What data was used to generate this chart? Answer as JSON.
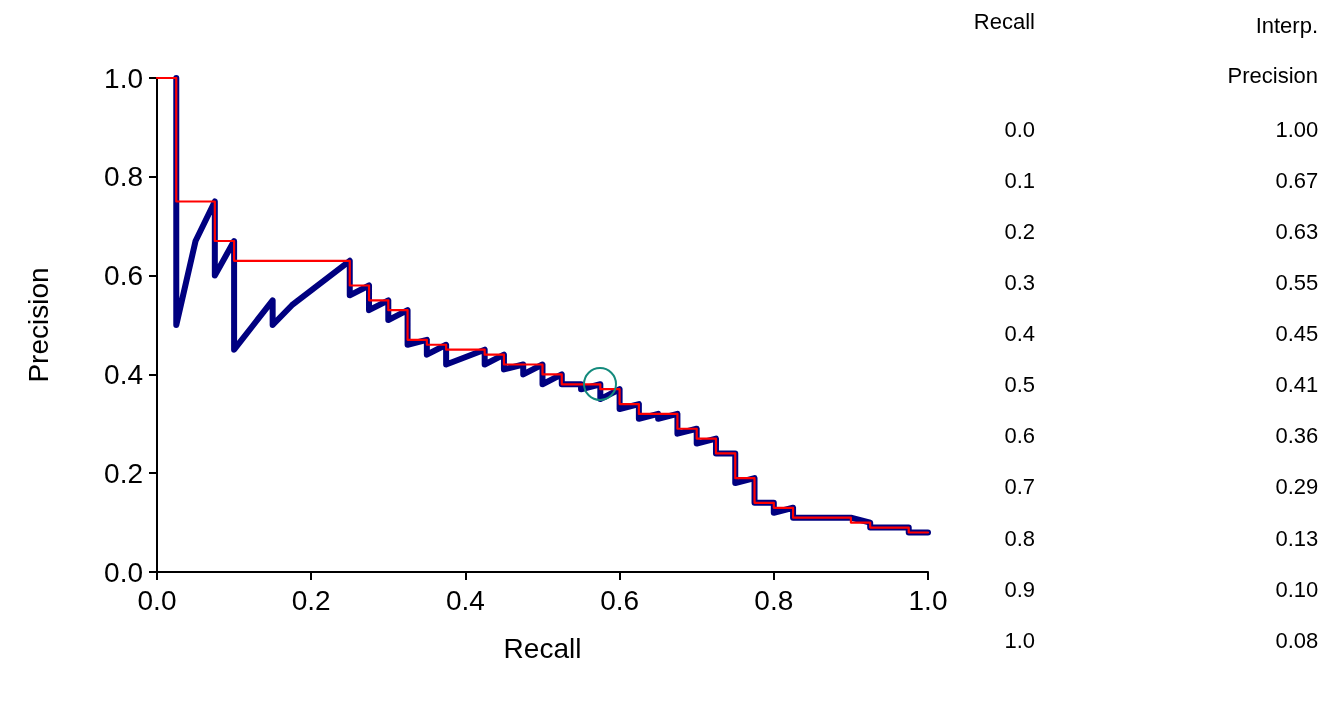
{
  "chart_data": [
    {
      "type": "line",
      "xlabel": "Recall",
      "ylabel": "Precision",
      "xlim": [
        0,
        1
      ],
      "ylim": [
        0,
        1
      ],
      "xticks": [
        {
          "value": 0,
          "label": "0.0"
        },
        0.2,
        0.4,
        0.6,
        0.8,
        {
          "value": 1,
          "label": "1.0"
        }
      ],
      "yticks": [
        {
          "value": 0,
          "label": "0.0"
        },
        0.2,
        0.4,
        0.6,
        0.8,
        {
          "value": 1,
          "label": "1.0"
        }
      ],
      "grid": false,
      "marker": "none",
      "series": [
        {
          "type": "line",
          "color": "#000080",
          "x": [
            0.025,
            0.025,
            0.05,
            0.075,
            0.075,
            0.1,
            0.1,
            0.125,
            0.15,
            0.15,
            0.175,
            0.2,
            0.225,
            0.25,
            0.25,
            0.275,
            0.275,
            0.3,
            0.3,
            0.325,
            0.325,
            0.35,
            0.35,
            0.375,
            0.375,
            0.425,
            0.425,
            0.45,
            0.45,
            0.475,
            0.475,
            0.5,
            0.5,
            0.525,
            0.525,
            0.55,
            0.55,
            0.575,
            0.575,
            0.6,
            0.6,
            0.625,
            0.625,
            0.65,
            0.65,
            0.675,
            0.675,
            0.7,
            0.7,
            0.725,
            0.725,
            0.75,
            0.75,
            0.775,
            0.775,
            0.8,
            0.8,
            0.825,
            0.825,
            0.875,
            0.9,
            0.925,
            0.925,
            0.975,
            0.975,
            1.0
          ],
          "values": [
            1.0,
            0.5,
            0.67,
            0.75,
            0.6,
            0.67,
            0.45,
            0.5,
            0.55,
            0.5,
            0.54,
            0.57,
            0.6,
            0.63,
            0.56,
            0.58,
            0.53,
            0.55,
            0.51,
            0.53,
            0.46,
            0.47,
            0.44,
            0.46,
            0.42,
            0.45,
            0.42,
            0.44,
            0.41,
            0.42,
            0.4,
            0.42,
            0.38,
            0.4,
            0.38,
            0.38,
            0.37,
            0.38,
            0.35,
            0.37,
            0.33,
            0.34,
            0.31,
            0.32,
            0.31,
            0.32,
            0.28,
            0.29,
            0.26,
            0.27,
            0.24,
            0.24,
            0.18,
            0.19,
            0.14,
            0.14,
            0.12,
            0.13,
            0.11,
            0.11,
            0.11,
            0.1,
            0.09,
            0.09,
            0.08,
            0.08
          ]
        },
        {
          "type": "step",
          "color": "#ff0000",
          "x": [
            0,
            0.025,
            0.075,
            0.1,
            0.25,
            0.275,
            0.3,
            0.325,
            0.35,
            0.375,
            0.425,
            0.45,
            0.475,
            0.5,
            0.525,
            0.55,
            0.575,
            0.6,
            0.625,
            0.675,
            0.7,
            0.725,
            0.75,
            0.775,
            0.8,
            0.825,
            0.9,
            0.925,
            0.975,
            1.0
          ],
          "values": [
            1.0,
            1.0,
            0.75,
            0.67,
            0.63,
            0.58,
            0.55,
            0.53,
            0.47,
            0.46,
            0.45,
            0.44,
            0.42,
            0.42,
            0.4,
            0.38,
            0.38,
            0.37,
            0.34,
            0.32,
            0.29,
            0.27,
            0.24,
            0.19,
            0.14,
            0.13,
            0.11,
            0.1,
            0.09,
            0.08
          ]
        }
      ]
    },
    {
      "type": "heatmap",
      "ylabel": "Recall",
      "categories": [
        "Interp. Precision"
      ],
      "y_categories": [
        "0.0",
        "0.1",
        "0.2",
        "0.3",
        "0.4",
        "0.5",
        "0.6",
        "0.7",
        "0.8",
        "0.9",
        "1.0"
      ],
      "cells": [
        [
          1.0
        ],
        [
          0.67
        ],
        [
          0.63
        ],
        [
          0.55
        ],
        [
          0.45
        ],
        [
          0.41
        ],
        [
          0.36
        ],
        [
          0.29
        ],
        [
          0.13
        ],
        [
          0.1
        ],
        [
          0.08
        ]
      ],
      "cell_labels": [
        [
          "1.00"
        ],
        [
          "0.67"
        ],
        [
          "0.63"
        ],
        [
          "0.55"
        ],
        [
          "0.45"
        ],
        [
          "0.41"
        ],
        [
          "0.36"
        ],
        [
          "0.29"
        ],
        [
          "0.13"
        ],
        [
          "0.10"
        ],
        [
          "0.08"
        ]
      ]
    }
  ]
}
